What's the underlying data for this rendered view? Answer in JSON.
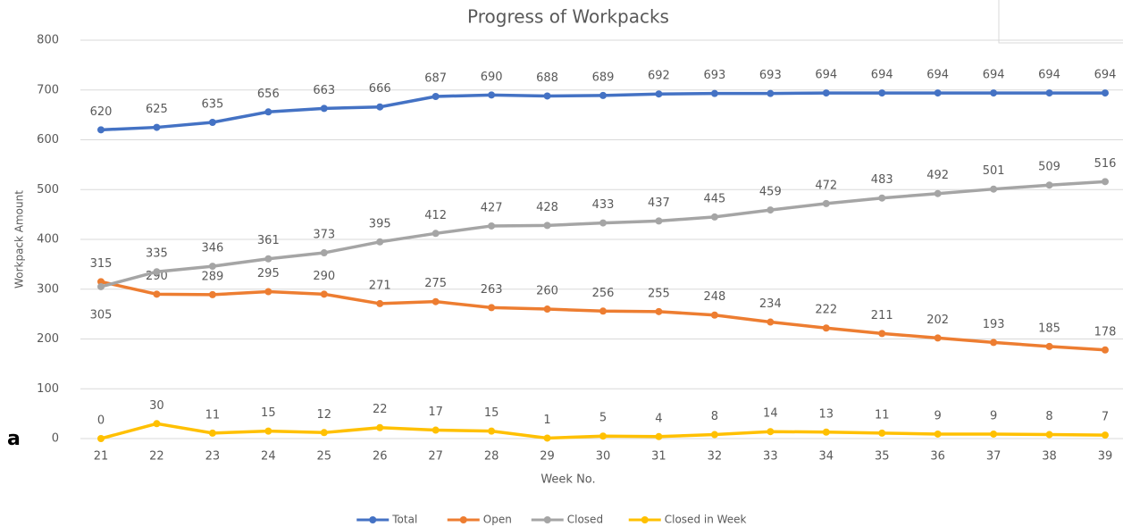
{
  "chart_data": {
    "type": "line",
    "title": "Progress of Workpacks",
    "x_label": "Week No.",
    "y_label": "Workpack Amount",
    "panel_label": "a",
    "categories": [
      "21",
      "22",
      "23",
      "24",
      "25",
      "26",
      "27",
      "28",
      "29",
      "30",
      "31",
      "32",
      "33",
      "34",
      "35",
      "36",
      "37",
      "38",
      "39"
    ],
    "series": [
      {
        "name": "Total",
        "color": "#4472c4",
        "values": [
          620,
          625,
          635,
          656,
          663,
          666,
          687,
          690,
          688,
          689,
          692,
          693,
          693,
          694,
          694,
          694,
          694,
          694,
          694
        ]
      },
      {
        "name": "Open",
        "color": "#ed7d31",
        "values": [
          315,
          290,
          289,
          295,
          290,
          271,
          275,
          263,
          260,
          256,
          255,
          248,
          234,
          222,
          211,
          202,
          193,
          185,
          178
        ]
      },
      {
        "name": "Closed",
        "color": "#a5a5a5",
        "values": [
          305,
          335,
          346,
          361,
          373,
          395,
          412,
          427,
          428,
          433,
          437,
          445,
          459,
          472,
          483,
          492,
          501,
          509,
          516
        ]
      },
      {
        "name": "Closed in Week",
        "color": "#ffc000",
        "values": [
          0,
          30,
          11,
          15,
          12,
          22,
          17,
          15,
          1,
          5,
          4,
          8,
          14,
          13,
          11,
          9,
          9,
          8,
          7
        ]
      }
    ],
    "ylim": [
      0,
      800
    ],
    "yticks": [
      0,
      100,
      200,
      300,
      400,
      500,
      600,
      700,
      800
    ],
    "grid": true,
    "legend": "bottom"
  }
}
